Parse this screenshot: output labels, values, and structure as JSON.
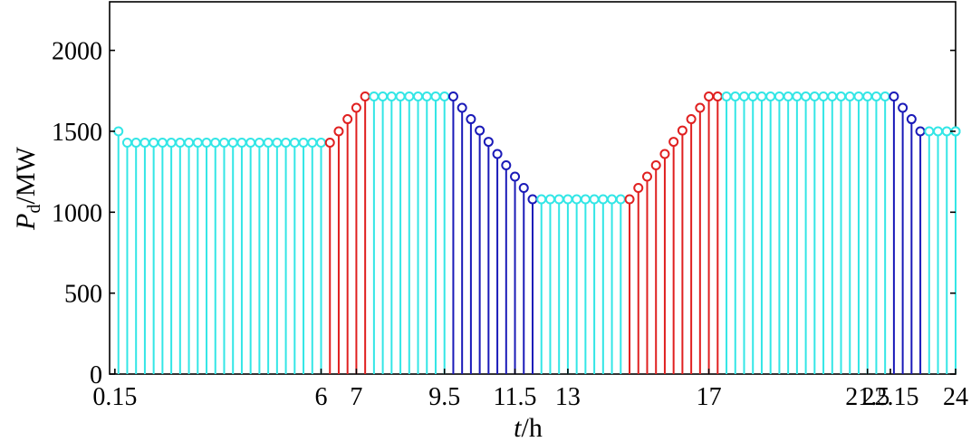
{
  "chart_data": {
    "type": "stem",
    "xlabel_var": "t",
    "xlabel_unit": "/h",
    "ylabel_var": "P",
    "ylabel_sub": "d",
    "ylabel_unit": "/MW",
    "xlim": [
      0,
      24
    ],
    "ylim": [
      0,
      2300
    ],
    "x_tick_values": [
      0.15,
      6,
      7,
      9.5,
      11.5,
      13,
      17,
      21.5,
      22.15,
      24
    ],
    "x_tick_labels": [
      "0.15",
      "6",
      "7",
      "9.5",
      "11.5",
      "13",
      "17",
      "21.5",
      "22.15",
      "24"
    ],
    "y_tick_values": [
      0,
      500,
      1000,
      1500,
      2000
    ],
    "y_tick_labels": [
      "0",
      "500",
      "1000",
      "1500",
      "2000"
    ],
    "colors": {
      "flat": "#33e6e6",
      "ramp_up": "#e02020",
      "ramp_down": "#1a1ab8"
    },
    "grid": false,
    "segments": [
      {
        "phase": "flat",
        "x": [
          0.25,
          0.5,
          0.75,
          1.0,
          1.25,
          1.5,
          1.75,
          2.0,
          2.25,
          2.5,
          2.75,
          3.0,
          3.25,
          3.5,
          3.75,
          4.0,
          4.25,
          4.5,
          4.75,
          5.0,
          5.25,
          5.5,
          5.75,
          6.0
        ],
        "y": [
          1500,
          1430,
          1430,
          1430,
          1430,
          1430,
          1430,
          1430,
          1430,
          1430,
          1430,
          1430,
          1430,
          1430,
          1430,
          1430,
          1430,
          1430,
          1430,
          1430,
          1430,
          1430,
          1430,
          1430
        ]
      },
      {
        "phase": "ramp_up",
        "x": [
          6.25,
          6.5,
          6.75,
          7.0,
          7.25
        ],
        "y": [
          1430,
          1500,
          1575,
          1645,
          1715
        ]
      },
      {
        "phase": "flat",
        "x": [
          7.5,
          7.75,
          8.0,
          8.25,
          8.5,
          8.75,
          9.0,
          9.25,
          9.5
        ],
        "y": [
          1715,
          1715,
          1715,
          1715,
          1715,
          1715,
          1715,
          1715,
          1715
        ]
      },
      {
        "phase": "ramp_down",
        "x": [
          9.75,
          10.0,
          10.25,
          10.5,
          10.75,
          11.0,
          11.25,
          11.5,
          11.75,
          12.0
        ],
        "y": [
          1715,
          1645,
          1575,
          1505,
          1435,
          1360,
          1290,
          1220,
          1150,
          1080
        ]
      },
      {
        "phase": "flat",
        "x": [
          12.25,
          12.5,
          12.75,
          13.0,
          13.25,
          13.5,
          13.75,
          14.0,
          14.25,
          14.5
        ],
        "y": [
          1080,
          1080,
          1080,
          1080,
          1080,
          1080,
          1080,
          1080,
          1080,
          1080
        ]
      },
      {
        "phase": "ramp_up",
        "x": [
          14.75,
          15.0,
          15.25,
          15.5,
          15.75,
          16.0,
          16.25,
          16.5,
          16.75,
          17.0,
          17.25
        ],
        "y": [
          1080,
          1150,
          1220,
          1290,
          1360,
          1435,
          1505,
          1575,
          1645,
          1715,
          1715
        ]
      },
      {
        "phase": "flat",
        "x": [
          17.5,
          17.75,
          18.0,
          18.25,
          18.5,
          18.75,
          19.0,
          19.25,
          19.5,
          19.75,
          20.0,
          20.25,
          20.5,
          20.75,
          21.0,
          21.25,
          21.5,
          21.75,
          22.0
        ],
        "y": [
          1715,
          1715,
          1715,
          1715,
          1715,
          1715,
          1715,
          1715,
          1715,
          1715,
          1715,
          1715,
          1715,
          1715,
          1715,
          1715,
          1715,
          1715,
          1715
        ]
      },
      {
        "phase": "ramp_down",
        "x": [
          22.25,
          22.5,
          22.75,
          23.0
        ],
        "y": [
          1715,
          1645,
          1575,
          1500
        ]
      },
      {
        "phase": "flat",
        "x": [
          23.25,
          23.5,
          23.75,
          24.0,
          24.25,
          24.5
        ],
        "y": [
          1500,
          1500,
          1500,
          1500,
          1500,
          1500
        ]
      }
    ]
  }
}
